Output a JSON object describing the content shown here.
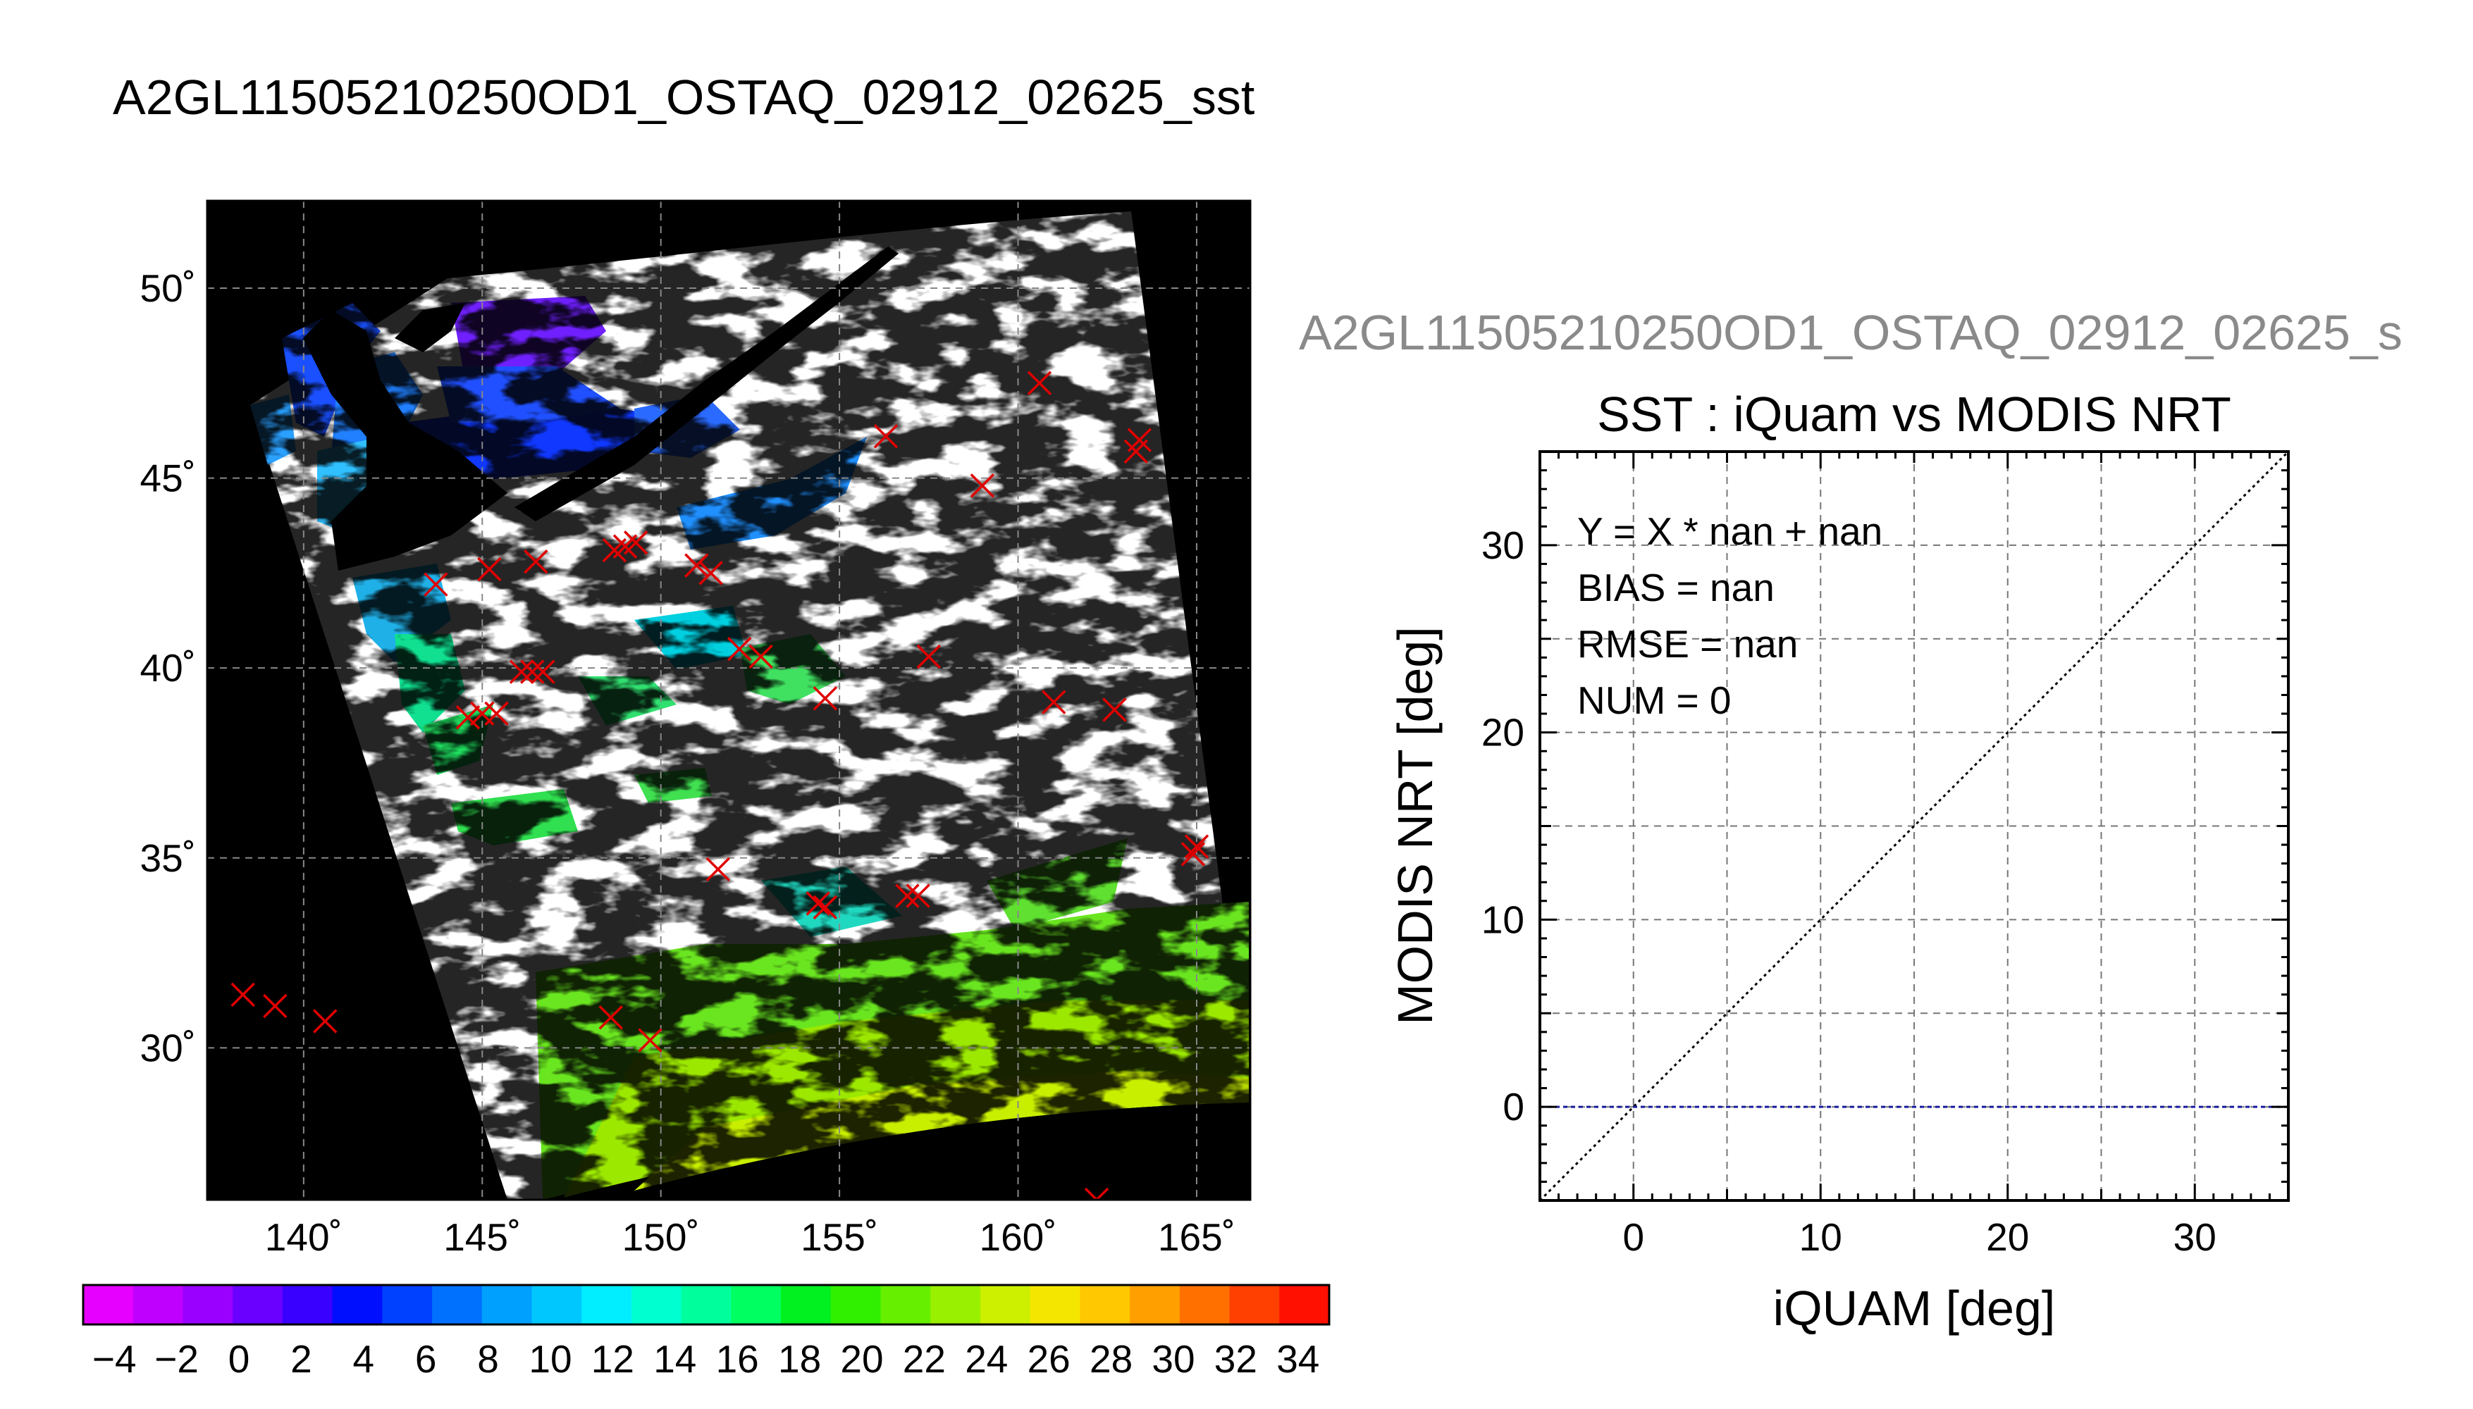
{
  "main_title": "A2GL11505210250OD1_OSTAQ_02912_02625_sst",
  "map_panel": {
    "lon_ticks": [
      "140˚",
      "145˚",
      "150˚",
      "155˚",
      "160˚",
      "165˚"
    ],
    "lon_values": [
      140,
      145,
      150,
      155,
      160,
      165
    ],
    "lat_ticks": [
      "30˚",
      "35˚",
      "40˚",
      "45˚",
      "50˚"
    ],
    "lat_values": [
      30,
      35,
      40,
      45,
      50
    ],
    "lon_range": [
      137.3,
      166.5
    ],
    "lat_range": [
      26.0,
      52.3
    ],
    "colors": {
      "background": "#000000",
      "swath": "#ffffff",
      "marker": "#e00000",
      "grid": "#888888"
    },
    "buoy_markers": [
      [
        47.5,
        160.6
      ],
      [
        46.1,
        156.3
      ],
      [
        46.0,
        163.4
      ],
      [
        45.7,
        163.3
      ],
      [
        44.8,
        159.0
      ],
      [
        43.1,
        148.7
      ],
      [
        43.2,
        149.0
      ],
      [
        43.3,
        149.3
      ],
      [
        42.8,
        146.5
      ],
      [
        42.6,
        145.2
      ],
      [
        42.2,
        143.7
      ],
      [
        42.7,
        151.0
      ],
      [
        42.5,
        151.4
      ],
      [
        40.5,
        152.2
      ],
      [
        40.3,
        152.8
      ],
      [
        40.3,
        157.5
      ],
      [
        39.9,
        146.1
      ],
      [
        39.9,
        146.4
      ],
      [
        39.9,
        146.7
      ],
      [
        39.2,
        154.6
      ],
      [
        39.1,
        161.0
      ],
      [
        38.9,
        162.7
      ],
      [
        38.7,
        144.6
      ],
      [
        38.8,
        145.0
      ],
      [
        38.8,
        145.4
      ],
      [
        35.3,
        165.0
      ],
      [
        35.1,
        164.9
      ],
      [
        34.7,
        151.6
      ],
      [
        34.0,
        156.9
      ],
      [
        34.0,
        157.2
      ],
      [
        33.8,
        154.4
      ],
      [
        33.7,
        154.6
      ],
      [
        31.4,
        138.3
      ],
      [
        31.1,
        139.2
      ],
      [
        30.7,
        140.6
      ],
      [
        30.8,
        148.6
      ],
      [
        30.2,
        149.7
      ],
      [
        26.0,
        162.2
      ]
    ]
  },
  "colorbar": {
    "tick_labels": [
      "−4",
      "−2",
      "0",
      "2",
      "4",
      "6",
      "8",
      "10",
      "12",
      "14",
      "16",
      "18",
      "20",
      "22",
      "24",
      "26",
      "28",
      "30",
      "32",
      "34"
    ],
    "range": [
      -5,
      35
    ],
    "colors": [
      "#e600ff",
      "#c000ff",
      "#9a00ff",
      "#6a00ff",
      "#3a00ff",
      "#0010ff",
      "#0040ff",
      "#0070ff",
      "#00a0ff",
      "#00c8ff",
      "#00eeff",
      "#00ffd0",
      "#00ff9c",
      "#00ff60",
      "#00f020",
      "#30f000",
      "#66f000",
      "#99f000",
      "#ccf000",
      "#f5e600",
      "#ffc800",
      "#ffa000",
      "#ff7000",
      "#ff4000",
      "#ff1000"
    ]
  },
  "scatter_panel": {
    "header_title": "A2GL11505210250OD1_OSTAQ_02912_02625_s",
    "chart_data": {
      "type": "scatter",
      "title": "SST : iQuam vs MODIS NRT",
      "xlabel": "iQUAM [deg]",
      "ylabel": "MODIS NRT [deg]",
      "xlim": [
        -5,
        35
      ],
      "ylim": [
        -5,
        35
      ],
      "x_ticks": [
        0,
        10,
        20,
        30
      ],
      "y_ticks": [
        0,
        10,
        20,
        30
      ],
      "grid": true,
      "points": [],
      "annotations": [
        "Y = X * nan + nan",
        "BIAS = nan",
        "RMSE = nan",
        "NUM = 0"
      ],
      "reference_lines": [
        {
          "kind": "identity",
          "color": "#000000",
          "style": "dotted"
        },
        {
          "kind": "horizontal",
          "y": 0,
          "color": "#1a1aa0",
          "style": "dashed"
        }
      ]
    }
  }
}
